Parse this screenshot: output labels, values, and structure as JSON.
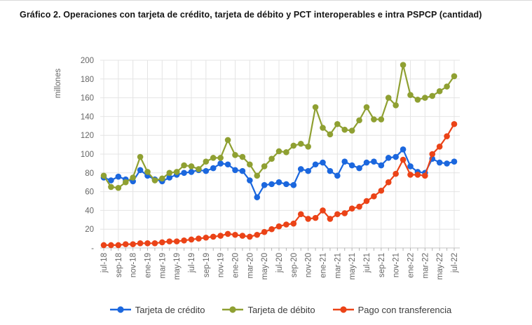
{
  "header": {
    "title": "Gráfico 2. Operaciones con tarjeta de crédito, tarjeta de débito y PCT interoperables e intra PSPCP (cantidad)"
  },
  "palette": {
    "credito": "#1b67de",
    "debito": "#8fa032",
    "transferencia": "#eb4317",
    "gridline": "#e4e4e4",
    "axis_line": "#c6c6c6",
    "tick_mark": "#b4b4b4",
    "axis_text": "#666666",
    "title_text": "#141414",
    "legend_text": "#3d3d3d"
  },
  "chart_data": {
    "type": "line",
    "title": "Gráfico 2. Operaciones con tarjeta de crédito, tarjeta de débito y PCT interoperables e intra PSPCP (cantidad)",
    "xlabel": "",
    "ylabel": "millones",
    "ylim": [
      0,
      200
    ],
    "ytick_step": 20,
    "zero_tick_label": "-",
    "y_tick_labels": [
      "-",
      "20",
      "40",
      "60",
      "80",
      "100",
      "120",
      "140",
      "160",
      "180",
      "200"
    ],
    "grid": true,
    "legend_position": "bottom",
    "categories": [
      "jul-18",
      "ago-18",
      "sep-18",
      "oct-18",
      "nov-18",
      "dic-18",
      "ene-19",
      "feb-19",
      "mar-19",
      "abr-19",
      "may-19",
      "jun-19",
      "jul-19",
      "ago-19",
      "sep-19",
      "oct-19",
      "nov-19",
      "dic-19",
      "ene-20",
      "feb-20",
      "mar-20",
      "abr-20",
      "may-20",
      "jun-20",
      "jul-20",
      "ago-20",
      "sep-20",
      "oct-20",
      "nov-20",
      "dic-20",
      "ene-21",
      "feb-21",
      "mar-21",
      "abr-21",
      "may-21",
      "jun-21",
      "jul-21",
      "ago-21",
      "sep-21",
      "oct-21",
      "nov-21",
      "dic-21",
      "ene-22",
      "feb-22",
      "mar-22",
      "abr-22",
      "may-22",
      "jun-22",
      "jul-22"
    ],
    "x_labeled_every": 2,
    "x_tick_labels": [
      "jul-18",
      "sep-18",
      "nov-18",
      "ene-19",
      "mar-19",
      "may-19",
      "jul-19",
      "sep-19",
      "nov-19",
      "ene-20",
      "mar-20",
      "may-20",
      "jul-20",
      "sep-20",
      "nov-20",
      "ene-21",
      "mar-21",
      "may-21",
      "jul-21",
      "sep-21",
      "nov-21",
      "ene-22",
      "mar-22",
      "may-22",
      "jul-22"
    ],
    "series": [
      {
        "name": "Tarjeta de crédito",
        "color_key": "credito",
        "values": [
          75,
          72,
          76,
          73,
          71,
          83,
          77,
          73,
          71,
          75,
          78,
          80,
          81,
          83,
          82,
          85,
          90,
          89,
          83,
          82,
          72,
          54,
          67,
          68,
          70,
          68,
          67,
          84,
          82,
          89,
          91,
          82,
          77,
          92,
          88,
          85,
          91,
          92,
          88,
          96,
          97,
          105,
          87,
          81,
          80,
          95,
          91,
          90,
          92
        ]
      },
      {
        "name": "Tarjeta de débito",
        "color_key": "debito",
        "values": [
          77,
          65,
          64,
          70,
          75,
          97,
          81,
          72,
          74,
          80,
          81,
          88,
          87,
          84,
          92,
          96,
          96,
          115,
          99,
          97,
          89,
          77,
          87,
          95,
          103,
          102,
          109,
          111,
          108,
          150,
          128,
          121,
          132,
          126,
          125,
          136,
          150,
          137,
          137,
          160,
          152,
          195,
          163,
          158,
          160,
          162,
          167,
          172,
          183
        ]
      },
      {
        "name": "Pago con transferencia",
        "color_key": "transferencia",
        "values": [
          3,
          3,
          3,
          4,
          4,
          5,
          5,
          5,
          6,
          7,
          7,
          8,
          9,
          10,
          11,
          12,
          13,
          15,
          14,
          13,
          12,
          14,
          17,
          20,
          23,
          25,
          26,
          36,
          31,
          32,
          40,
          31,
          36,
          37,
          42,
          44,
          50,
          55,
          61,
          70,
          79,
          94,
          78,
          78,
          77,
          100,
          108,
          119,
          132
        ]
      }
    ]
  }
}
